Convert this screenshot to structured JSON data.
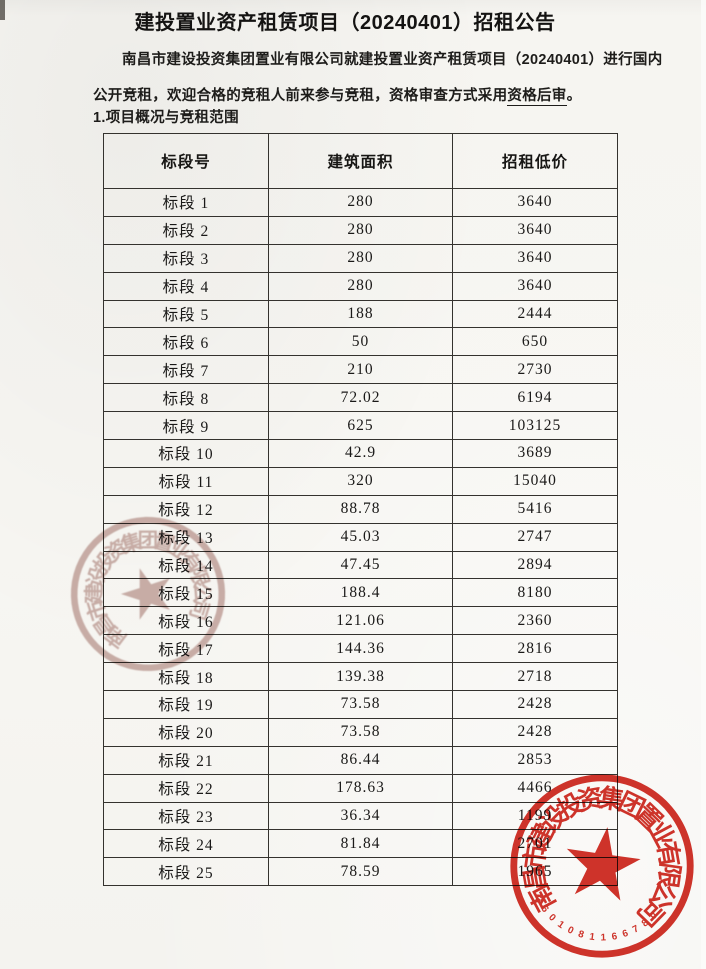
{
  "title": "建投置业资产租赁项目（20240401）招租公告",
  "intro": {
    "line1": "南昌市建设投资集团置业有限公司就建投置业资产租赁项目（20240401）进行国内",
    "line2_before": "公开竞租，欢迎合格的竞租人前来参与竞租，资格审查方式采用",
    "line2_underlined": "资格后审",
    "line2_end": "。"
  },
  "section_heading": "1.项目概况与竞租范围",
  "table": {
    "headers": [
      "标段号",
      "建筑面积",
      "招租低价"
    ],
    "rows": [
      {
        "label": "标段 1",
        "area": "280",
        "price": "3640"
      },
      {
        "label": "标段 2",
        "area": "280",
        "price": "3640"
      },
      {
        "label": "标段 3",
        "area": "280",
        "price": "3640"
      },
      {
        "label": "标段 4",
        "area": "280",
        "price": "3640"
      },
      {
        "label": "标段 5",
        "area": "188",
        "price": "2444"
      },
      {
        "label": "标段 6",
        "area": "50",
        "price": "650"
      },
      {
        "label": "标段 7",
        "area": "210",
        "price": "2730"
      },
      {
        "label": "标段 8",
        "area": "72.02",
        "price": "6194"
      },
      {
        "label": "标段 9",
        "area": "625",
        "price": "103125"
      },
      {
        "label": "标段 10",
        "area": "42.9",
        "price": "3689"
      },
      {
        "label": "标段 11",
        "area": "320",
        "price": "15040"
      },
      {
        "label": "标段 12",
        "area": "88.78",
        "price": "5416"
      },
      {
        "label": "标段 13",
        "area": "45.03",
        "price": "2747"
      },
      {
        "label": "标段 14",
        "area": "47.45",
        "price": "2894"
      },
      {
        "label": "标段 15",
        "area": "188.4",
        "price": "8180"
      },
      {
        "label": "标段 16",
        "area": "121.06",
        "price": "2360"
      },
      {
        "label": "标段 17",
        "area": "144.36",
        "price": "2816"
      },
      {
        "label": "标段 18",
        "area": "139.38",
        "price": "2718"
      },
      {
        "label": "标段 19",
        "area": "73.58",
        "price": "2428"
      },
      {
        "label": "标段 20",
        "area": "73.58",
        "price": "2428"
      },
      {
        "label": "标段 21",
        "area": "86.44",
        "price": "2853"
      },
      {
        "label": "标段 22",
        "area": "178.63",
        "price": "4466"
      },
      {
        "label": "标段 23",
        "area": "36.34",
        "price": "1199"
      },
      {
        "label": "标段 24",
        "area": "81.84",
        "price": "2701"
      },
      {
        "label": "标段 25",
        "area": "78.59",
        "price": "1965"
      }
    ]
  },
  "stamps": {
    "company_seal": {
      "ring_text": "南昌市建设投资集团置业有限公司",
      "serial_number": "3601081166780",
      "color": "#cf241a"
    },
    "faded_seal": {
      "ring_text": "南昌市建设投资集团置业有限公司",
      "color": "#8b4a40"
    }
  }
}
